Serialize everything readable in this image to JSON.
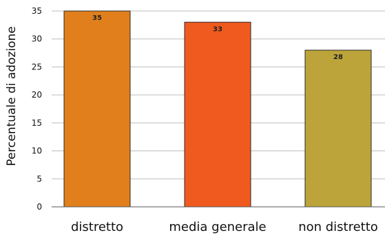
{
  "chart_data": {
    "type": "bar",
    "categories": [
      "distretto",
      "media generale",
      "non distretto"
    ],
    "values": [
      35,
      33,
      28
    ],
    "data_labels": [
      "35",
      "33",
      "28"
    ],
    "colors": [
      "#e07f1c",
      "#f05a1e",
      "#bca43a"
    ],
    "ylabel": "Percentuale di adozione",
    "xlabel": "",
    "title": "",
    "ylim": [
      0,
      35
    ],
    "yticks": [
      0,
      5,
      10,
      15,
      20,
      25,
      30,
      35
    ],
    "grid": "horizontal"
  }
}
